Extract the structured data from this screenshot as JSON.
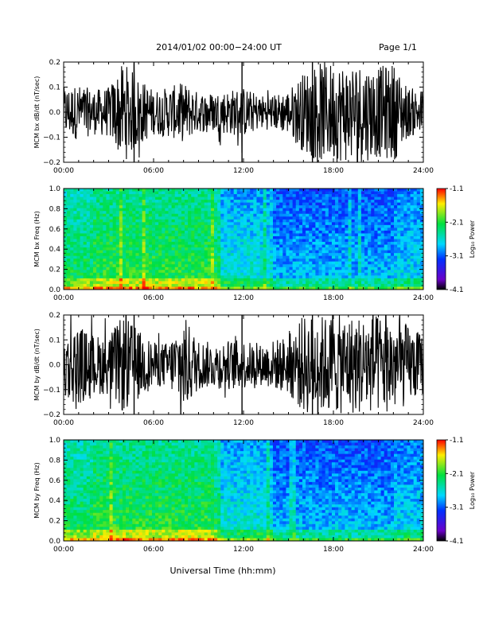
{
  "header": {
    "title": "2014/01/02  00:00−24:00 UT",
    "page": "Page 1/1"
  },
  "footer": {
    "xlabel": "Universal Time (hh:mm)"
  },
  "x_ticks": [
    "00:00",
    "06:00",
    "12:00",
    "18:00",
    "24:00"
  ],
  "colorbar": {
    "label": "Log₁₀ Power",
    "ticks": [
      "-1.1",
      "-2.1",
      "-3.1",
      "-4.1"
    ],
    "range": [
      -4.1,
      -1.1
    ]
  },
  "chart_data": [
    {
      "type": "line",
      "ylabel": "MCM bx dB/dt (nT/sec)",
      "xlim": [
        0,
        24
      ],
      "ylim": [
        -0.2,
        0.2
      ],
      "yticks": [
        "0.2",
        "0.1",
        "0.0",
        "−0.1",
        "−0.2"
      ],
      "envelope_hours": [
        0,
        1,
        2,
        3,
        4,
        5,
        6,
        7,
        8,
        9,
        10,
        11,
        12,
        13,
        14,
        15,
        16,
        17,
        18,
        19,
        20,
        21,
        22,
        23,
        24
      ],
      "envelope_amplitude": [
        0.1,
        0.11,
        0.09,
        0.1,
        0.2,
        0.14,
        0.09,
        0.1,
        0.12,
        0.08,
        0.08,
        0.09,
        0.1,
        0.07,
        0.07,
        0.09,
        0.16,
        0.2,
        0.2,
        0.2,
        0.2,
        0.18,
        0.2,
        0.1,
        0.09
      ]
    },
    {
      "type": "heatmap",
      "ylabel": "MCM bx Freq (Hz)",
      "xlim": [
        0,
        24
      ],
      "ylim": [
        0.0,
        1.0
      ],
      "yticks": [
        "1.0",
        "0.8",
        "0.6",
        "0.4",
        "0.2",
        "0.0"
      ],
      "z_label": "Log₁₀ Power",
      "zlim": [
        -4.1,
        -1.1
      ]
    },
    {
      "type": "line",
      "ylabel": "MCM by dB/dt (nT/sec)",
      "xlim": [
        0,
        24
      ],
      "ylim": [
        -0.2,
        0.2
      ],
      "yticks": [
        "0.2",
        "0.1",
        "0.0",
        "−0.1",
        "−0.2"
      ],
      "envelope_hours": [
        0,
        1,
        2,
        3,
        4,
        5,
        6,
        7,
        8,
        9,
        10,
        11,
        12,
        13,
        14,
        15,
        16,
        17,
        18,
        19,
        20,
        21,
        22,
        23,
        24
      ],
      "envelope_amplitude": [
        0.14,
        0.16,
        0.12,
        0.12,
        0.2,
        0.14,
        0.09,
        0.09,
        0.2,
        0.1,
        0.09,
        0.1,
        0.1,
        0.08,
        0.1,
        0.12,
        0.2,
        0.2,
        0.2,
        0.2,
        0.2,
        0.2,
        0.2,
        0.16,
        0.12
      ]
    },
    {
      "type": "heatmap",
      "ylabel": "MCM by Freq (Hz)",
      "xlim": [
        0,
        24
      ],
      "ylim": [
        0.0,
        1.0
      ],
      "yticks": [
        "1.0",
        "0.8",
        "0.6",
        "0.4",
        "0.2",
        "0.0"
      ],
      "z_label": "Log₁₀ Power",
      "zlim": [
        -4.1,
        -1.1
      ]
    }
  ]
}
